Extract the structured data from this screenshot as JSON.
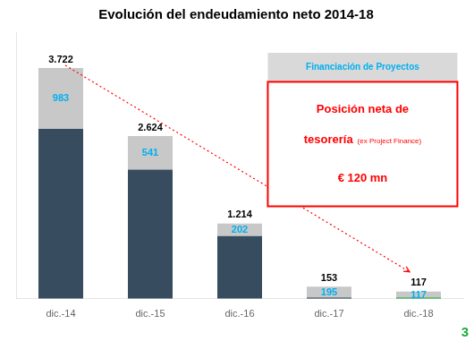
{
  "chart_data": {
    "type": "bar",
    "title": "Evolución del endeudamiento neto 2014-18",
    "categories": [
      "dic.-14",
      "dic.-15",
      "dic.-16",
      "dic.-17",
      "dic.-18"
    ],
    "stacked": true,
    "series": [
      {
        "color": "#374c5e",
        "values": [
          2739,
          2083,
          1012,
          0,
          0
        ]
      },
      {
        "color": "#c8c8c8",
        "values": [
          983,
          541,
          202,
          195,
          117
        ],
        "data_labels": true,
        "label_color": "#00b0f0"
      },
      {
        "color": "#374c5e",
        "values": [
          null,
          null,
          null,
          20,
          null
        ]
      },
      {
        "color": "#1aab3c",
        "values": [
          null,
          null,
          null,
          null,
          18
        ]
      }
    ],
    "totals": [
      3722,
      2624,
      1214,
      153,
      117
    ],
    "total_labels": [
      "3.722",
      "2.624",
      "1.214",
      "153",
      "117"
    ],
    "ylim": [
      0,
      4300
    ],
    "yticks": [],
    "grid": false,
    "tick_labels": "x",
    "annotations": [
      {
        "text": "Financiación de Proyectos",
        "color": "#00b0f0",
        "background": "#d9d9d9"
      },
      {
        "text": [
          "Posición neta de",
          [
            "tesorería",
            "(ex Project Finance)"
          ],
          "€ 120 mn"
        ],
        "color": "#ff0000"
      },
      {
        "arrow": true,
        "color": "#ff0000"
      },
      {
        "text": "3",
        "color": "#1aab3c"
      }
    ]
  }
}
